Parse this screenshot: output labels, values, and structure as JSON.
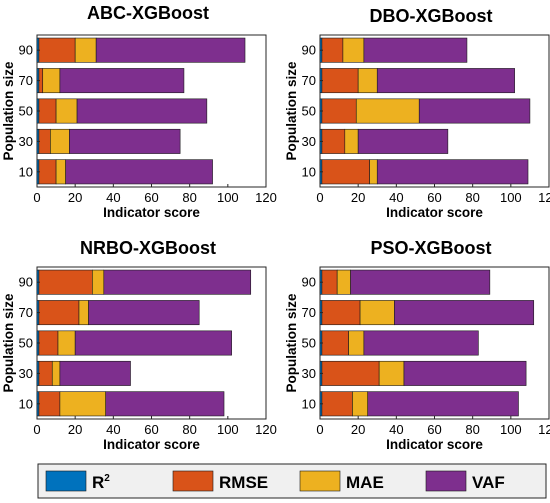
{
  "chart_data": [
    {
      "type": "bar",
      "orientation": "horizontal",
      "stacked": true,
      "title": "ABC-XGBoost",
      "xlabel": "Indicator score",
      "ylabel": "Population size",
      "xlim": [
        0,
        120
      ],
      "xticks": [
        "0",
        "20",
        "40",
        "60",
        "80",
        "100",
        "120"
      ],
      "categories": [
        "10",
        "30",
        "50",
        "70",
        "90"
      ],
      "series": [
        {
          "name": "R",
          "values": [
            1,
            1,
            1,
            1,
            1
          ]
        },
        {
          "name": "RMSE",
          "values": [
            9,
            6,
            9,
            2,
            19
          ]
        },
        {
          "name": "MAE",
          "values": [
            5,
            10,
            11,
            9,
            11
          ]
        },
        {
          "name": "VAF",
          "values": [
            77,
            58,
            68,
            65,
            78
          ]
        }
      ]
    },
    {
      "type": "bar",
      "orientation": "horizontal",
      "stacked": true,
      "title": "DBO-XGBoost",
      "xlabel": "Indicator score",
      "ylabel": "Population size",
      "xlim": [
        0,
        120
      ],
      "xticks": [
        "0",
        "20",
        "40",
        "60",
        "80",
        "100",
        "120"
      ],
      "categories": [
        "10",
        "30",
        "50",
        "70",
        "90"
      ],
      "series": [
        {
          "name": "R",
          "values": [
            1,
            1,
            1,
            1,
            1
          ]
        },
        {
          "name": "RMSE",
          "values": [
            25,
            12,
            18,
            19,
            11
          ]
        },
        {
          "name": "MAE",
          "values": [
            4,
            7,
            33,
            10,
            11
          ]
        },
        {
          "name": "VAF",
          "values": [
            79,
            47,
            58,
            72,
            54
          ]
        }
      ]
    },
    {
      "type": "bar",
      "orientation": "horizontal",
      "stacked": true,
      "title": "NRBO-XGBoost",
      "xlabel": "Indicator score",
      "ylabel": "Population size",
      "xlim": [
        0,
        120
      ],
      "xticks": [
        "0",
        "20",
        "40",
        "60",
        "80",
        "100",
        "120"
      ],
      "categories": [
        "10",
        "30",
        "50",
        "70",
        "90"
      ],
      "series": [
        {
          "name": "R",
          "values": [
            1,
            1,
            1,
            1,
            1
          ]
        },
        {
          "name": "RMSE",
          "values": [
            11,
            7,
            10,
            21,
            28
          ]
        },
        {
          "name": "MAE",
          "values": [
            24,
            4,
            9,
            5,
            6
          ]
        },
        {
          "name": "VAF",
          "values": [
            62,
            37,
            82,
            58,
            77
          ]
        }
      ]
    },
    {
      "type": "bar",
      "orientation": "horizontal",
      "stacked": true,
      "title": "PSO-XGBoost",
      "xlabel": "Indicator score",
      "ylabel": "Population size",
      "xlim": [
        0,
        120
      ],
      "xticks": [
        "0",
        "20",
        "40",
        "60",
        "80",
        "100",
        "120"
      ],
      "categories": [
        "10",
        "30",
        "50",
        "70",
        "90"
      ],
      "series": [
        {
          "name": "R",
          "values": [
            1,
            1,
            1,
            1,
            1
          ]
        },
        {
          "name": "RMSE",
          "values": [
            16,
            30,
            14,
            20,
            8
          ]
        },
        {
          "name": "MAE",
          "values": [
            8,
            13,
            8,
            18,
            7
          ]
        },
        {
          "name": "VAF",
          "values": [
            79,
            64,
            60,
            73,
            73
          ]
        }
      ]
    }
  ],
  "legend": {
    "placement": "bottom",
    "items": [
      {
        "label": "R",
        "superscript": "2",
        "color": "#0072BD"
      },
      {
        "label": "RMSE",
        "color": "#D95319"
      },
      {
        "label": "MAE",
        "color": "#EDB120"
      },
      {
        "label": "VAF",
        "color": "#7E2F8E"
      }
    ]
  },
  "colors": {
    "R": "#0072BD",
    "RMSE": "#D95319",
    "MAE": "#EDB120",
    "VAF": "#7E2F8E"
  }
}
